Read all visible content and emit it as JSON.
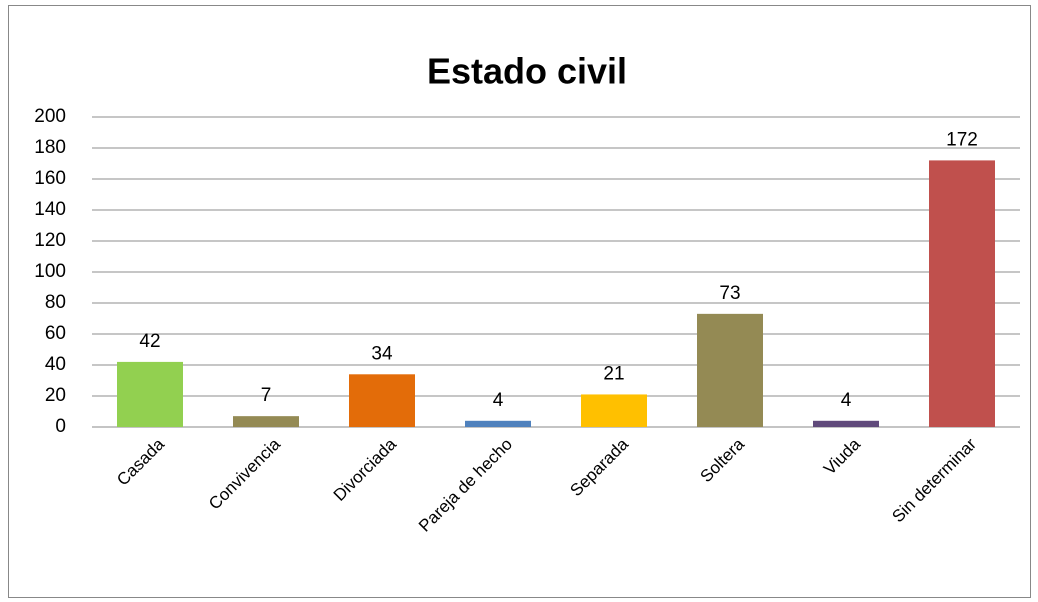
{
  "chart_data": {
    "type": "bar",
    "title": "Estado civil",
    "categories": [
      "Casada",
      "Convivencia",
      "Divorciada",
      "Pareja de hecho",
      "Separada",
      "Soltera",
      "Viuda",
      "Sin determinar"
    ],
    "values": [
      42,
      7,
      34,
      4,
      21,
      73,
      4,
      172
    ],
    "colors": [
      "#92d050",
      "#948a54",
      "#e36c09",
      "#4f81bd",
      "#ffc000",
      "#948a54",
      "#604a7b",
      "#c0504d"
    ],
    "ylim": [
      0,
      200
    ],
    "yticks": [
      0,
      20,
      40,
      60,
      80,
      100,
      120,
      140,
      160,
      180,
      200
    ],
    "grid": true
  }
}
